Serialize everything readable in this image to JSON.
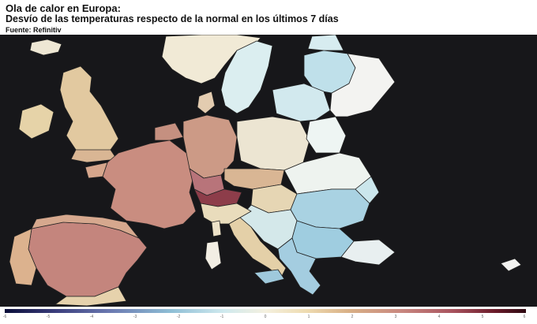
{
  "title": "Ola de calor en Europa:",
  "subtitle": "Desvío de las temperaturas respecto de la normal en los últimos 7 días",
  "source": "Fuente: Refinitiv",
  "colorbar": {
    "min": -6,
    "max": 6,
    "ticks": [
      "-6",
      "-5",
      "-4",
      "-3",
      "-2",
      "-1",
      "0",
      "1",
      "2",
      "3",
      "4",
      "5",
      "6"
    ],
    "colors": {
      "very_cold": "#0b0e3a",
      "cold": "#8fbfd6",
      "normal": "#f4f0df",
      "warm": "#d9b086",
      "hot": "#c98880",
      "very_hot": "#6b1b2a"
    }
  },
  "map": {
    "background": "#17171a",
    "border_color": "#222222",
    "regions": [
      {
        "name": "norway",
        "anomaly": 0.5
      },
      {
        "name": "sweden",
        "anomaly": -0.8
      },
      {
        "name": "finland",
        "anomaly": -1.6
      },
      {
        "name": "iceland",
        "anomaly": 0.3
      },
      {
        "name": "ireland",
        "anomaly": 0.8
      },
      {
        "name": "united-kingdom",
        "anomaly": 2.2
      },
      {
        "name": "france",
        "anomaly": 3.8
      },
      {
        "name": "iberia",
        "anomaly": 3.5
      },
      {
        "name": "germany",
        "anomaly": 2.8
      },
      {
        "name": "poland",
        "anomaly": -0.2
      },
      {
        "name": "baltics",
        "anomaly": -1.4
      },
      {
        "name": "italy",
        "anomaly": 1.2
      },
      {
        "name": "balkans",
        "anomaly": -2.0
      },
      {
        "name": "greece",
        "anomaly": -1.6
      },
      {
        "name": "romania",
        "anomaly": -2.1
      }
    ]
  }
}
